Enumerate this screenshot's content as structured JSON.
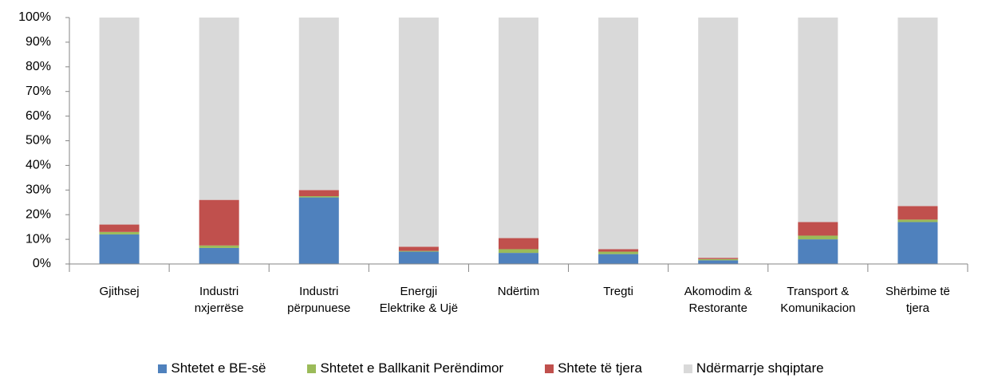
{
  "chart_data": {
    "type": "stacked_bar",
    "categories": [
      "Gjithsej",
      "Industri nxjerrëse",
      "Industri përpunuese",
      "Energji Elektrike & Ujë",
      "Ndërtim",
      "Tregti",
      "Akomodim & Restorante",
      "Transport & Komunikacion",
      "Shërbime të tjera"
    ],
    "series": [
      {
        "name": "Shtetet e BE-së",
        "color": "#4f81bd",
        "values": [
          12,
          6.5,
          27,
          5,
          4.5,
          4,
          1.5,
          10,
          17
        ]
      },
      {
        "name": "Shtetet e Ballkanit Perëndimor",
        "color": "#9bbb59",
        "values": [
          1,
          1,
          0.5,
          0.3,
          1.5,
          1,
          0.5,
          1.5,
          1
        ]
      },
      {
        "name": "Shtete të tjera",
        "color": "#c0504d",
        "values": [
          3,
          18.5,
          2.5,
          1.7,
          4.5,
          1,
          0.5,
          5.5,
          5.5
        ]
      },
      {
        "name": "Ndërmarrje shqiptare",
        "color": "#d9d9d9",
        "values": [
          84,
          74,
          70,
          93,
          89.5,
          94,
          97.5,
          83,
          76.5
        ]
      }
    ],
    "ylim": [
      0,
      100
    ],
    "yticks": [
      {
        "value": 0,
        "label": "0%"
      },
      {
        "value": 10,
        "label": "10%"
      },
      {
        "value": 20,
        "label": "20%"
      },
      {
        "value": 30,
        "label": "30%"
      },
      {
        "value": 40,
        "label": "40%"
      },
      {
        "value": 50,
        "label": "50%"
      },
      {
        "value": 60,
        "label": "60%"
      },
      {
        "value": 70,
        "label": "70%"
      },
      {
        "value": 80,
        "label": "80%"
      },
      {
        "value": 90,
        "label": "90%"
      },
      {
        "value": 100,
        "label": "100%"
      }
    ],
    "legend": "bottom"
  }
}
